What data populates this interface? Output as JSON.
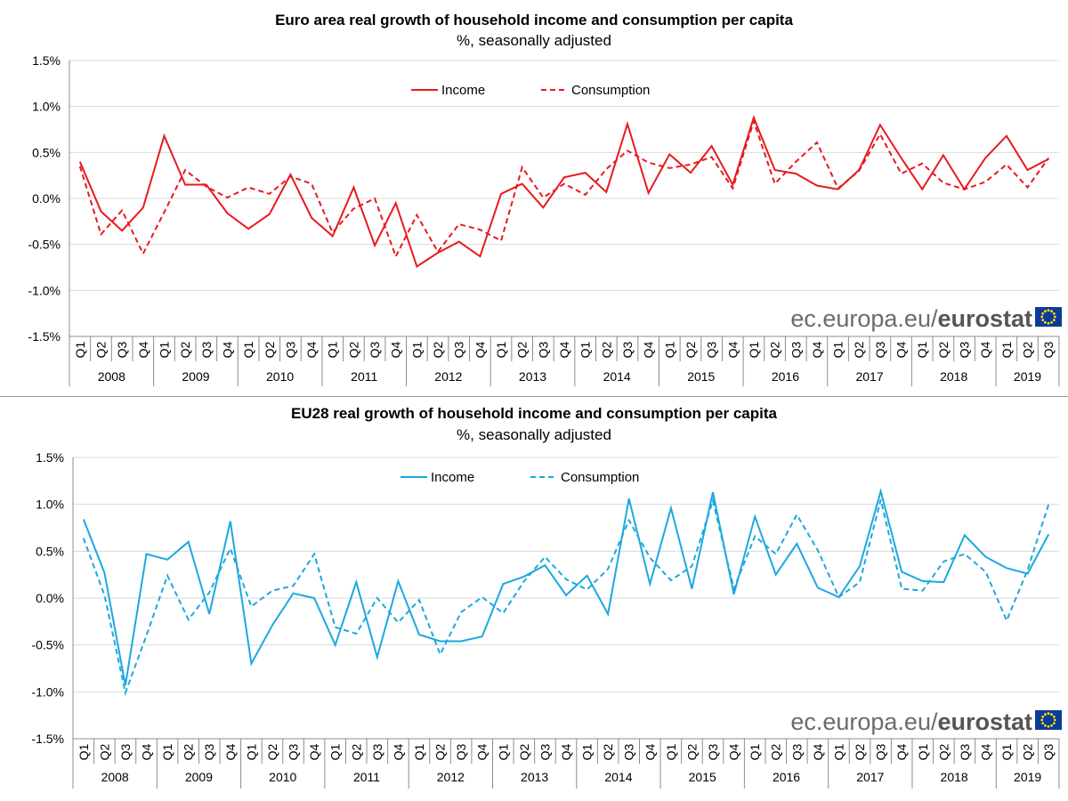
{
  "colors": {
    "panel1_series": "#e8191f",
    "panel2_series": "#1ba8e0",
    "eu_flag_blue": "#0d3b99",
    "eu_flag_star": "#ffdd00"
  },
  "branding": {
    "light": "ec.europa.eu/",
    "bold": "eurostat",
    "logo": "eu-flag-icon"
  },
  "chart_data": [
    {
      "type": "line",
      "title": "Euro area real growth of household income and consumption per capita",
      "subtitle": "%, seasonally adjusted",
      "ylim": [
        -1.5,
        1.5
      ],
      "yticks": [
        1.5,
        1.0,
        0.5,
        0.0,
        -0.5,
        -1.0,
        -1.5
      ],
      "ytick_labels": [
        "1.5%",
        "1.0%",
        "0.5%",
        "0.0%",
        "-0.5%",
        "-1.0%",
        "-1.5%"
      ],
      "quarters": [
        "Q1",
        "Q2",
        "Q3",
        "Q4",
        "Q1",
        "Q2",
        "Q3",
        "Q4",
        "Q1",
        "Q2",
        "Q3",
        "Q4",
        "Q1",
        "Q2",
        "Q3",
        "Q4",
        "Q1",
        "Q2",
        "Q3",
        "Q4",
        "Q1",
        "Q2",
        "Q3",
        "Q4",
        "Q1",
        "Q2",
        "Q3",
        "Q4",
        "Q1",
        "Q2",
        "Q3",
        "Q4",
        "Q1",
        "Q2",
        "Q3",
        "Q4",
        "Q1",
        "Q2",
        "Q3",
        "Q4",
        "Q1",
        "Q2",
        "Q3",
        "Q4",
        "Q1",
        "Q2",
        "Q3"
      ],
      "years": [
        "2008",
        "2009",
        "2010",
        "2011",
        "2012",
        "2013",
        "2014",
        "2015",
        "2016",
        "2017",
        "2018",
        "2019"
      ],
      "legend": "top-center",
      "series": [
        {
          "name": "Income",
          "style": "solid",
          "values": [
            0.4,
            -0.14,
            -0.35,
            -0.1,
            0.68,
            0.15,
            0.15,
            -0.16,
            -0.33,
            -0.17,
            0.26,
            -0.21,
            -0.41,
            0.12,
            -0.51,
            -0.05,
            -0.74,
            -0.59,
            -0.47,
            -0.63,
            0.05,
            0.16,
            -0.1,
            0.23,
            0.28,
            0.07,
            0.81,
            0.06,
            0.48,
            0.28,
            0.57,
            0.15,
            0.88,
            0.31,
            0.27,
            0.14,
            0.1,
            0.31,
            0.8,
            0.44,
            0.1,
            0.47,
            0.1,
            0.44,
            0.68,
            0.31,
            0.43
          ]
        },
        {
          "name": "Consumption",
          "style": "dashed",
          "values": [
            0.35,
            -0.39,
            -0.13,
            -0.6,
            -0.15,
            0.31,
            0.13,
            0.01,
            0.12,
            0.05,
            0.24,
            0.16,
            -0.37,
            -0.11,
            0.0,
            -0.63,
            -0.18,
            -0.58,
            -0.28,
            -0.34,
            -0.46,
            0.34,
            0.01,
            0.16,
            0.04,
            0.32,
            0.52,
            0.39,
            0.33,
            0.37,
            0.45,
            0.11,
            0.84,
            0.16,
            0.4,
            0.61,
            0.11,
            0.3,
            0.7,
            0.27,
            0.38,
            0.17,
            0.1,
            0.18,
            0.37,
            0.12,
            0.44
          ]
        }
      ]
    },
    {
      "type": "line",
      "title": "EU28 real growth of household income and consumption per capita",
      "subtitle": "%, seasonally adjusted",
      "ylim": [
        -1.5,
        1.5
      ],
      "yticks": [
        1.5,
        1.0,
        0.5,
        0.0,
        -0.5,
        -1.0,
        -1.5
      ],
      "ytick_labels": [
        "1.5%",
        "1.0%",
        "0.5%",
        "0.0%",
        "-0.5%",
        "-1.0%",
        "-1.5%"
      ],
      "quarters": [
        "Q1",
        "Q2",
        "Q3",
        "Q4",
        "Q1",
        "Q2",
        "Q3",
        "Q4",
        "Q1",
        "Q2",
        "Q3",
        "Q4",
        "Q1",
        "Q2",
        "Q3",
        "Q4",
        "Q1",
        "Q2",
        "Q3",
        "Q4",
        "Q1",
        "Q2",
        "Q3",
        "Q4",
        "Q1",
        "Q2",
        "Q3",
        "Q4",
        "Q1",
        "Q2",
        "Q3",
        "Q4",
        "Q1",
        "Q2",
        "Q3",
        "Q4",
        "Q1",
        "Q2",
        "Q3",
        "Q4",
        "Q1",
        "Q2",
        "Q3",
        "Q4",
        "Q1",
        "Q2",
        "Q3"
      ],
      "years": [
        "2008",
        "2009",
        "2010",
        "2011",
        "2012",
        "2013",
        "2014",
        "2015",
        "2016",
        "2017",
        "2018",
        "2019"
      ],
      "legend": "top-center",
      "series": [
        {
          "name": "Income",
          "style": "solid",
          "values": [
            0.84,
            0.27,
            -0.93,
            0.47,
            0.41,
            0.6,
            -0.17,
            0.82,
            -0.7,
            -0.29,
            0.05,
            0.0,
            -0.5,
            0.17,
            -0.63,
            0.18,
            -0.39,
            -0.46,
            -0.46,
            -0.41,
            0.15,
            0.23,
            0.35,
            0.03,
            0.24,
            -0.17,
            1.06,
            0.15,
            0.96,
            0.1,
            1.13,
            0.04,
            0.87,
            0.25,
            0.58,
            0.11,
            0.01,
            0.34,
            1.14,
            0.28,
            0.18,
            0.17,
            0.67,
            0.44,
            0.32,
            0.26,
            0.68
          ]
        },
        {
          "name": "Consumption",
          "style": "dashed",
          "values": [
            0.64,
            0.03,
            -1.01,
            -0.4,
            0.24,
            -0.23,
            0.06,
            0.53,
            -0.09,
            0.08,
            0.13,
            0.47,
            -0.31,
            -0.38,
            0.0,
            -0.26,
            -0.02,
            -0.6,
            -0.15,
            0.01,
            -0.16,
            0.18,
            0.44,
            0.2,
            0.09,
            0.31,
            0.83,
            0.43,
            0.19,
            0.34,
            1.04,
            0.1,
            0.66,
            0.47,
            0.89,
            0.51,
            0.01,
            0.17,
            1.05,
            0.1,
            0.08,
            0.39,
            0.47,
            0.28,
            -0.24,
            0.3,
            1.0
          ]
        }
      ]
    }
  ]
}
